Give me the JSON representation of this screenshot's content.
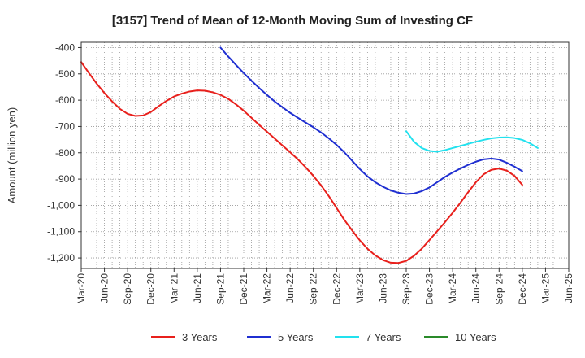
{
  "chart_data": {
    "type": "line",
    "title": "[3157]  Trend of Mean of 12-Month Moving Sum of Investing CF",
    "xlabel": "",
    "ylabel": "Amount (million yen)",
    "ylim": [
      -1240,
      -380
    ],
    "yticks": [
      -400,
      -500,
      -600,
      -700,
      -800,
      -900,
      -1000,
      -1100,
      -1200
    ],
    "ytick_labels": [
      "-400",
      "-500",
      "-600",
      "-700",
      "-800",
      "-900",
      "-1,000",
      "-1,100",
      "-1,200"
    ],
    "x_start": "Mar-20",
    "xticks": [
      "Mar-20",
      "Jun-20",
      "Sep-20",
      "Dec-20",
      "Mar-21",
      "Jun-21",
      "Sep-21",
      "Dec-21",
      "Mar-22",
      "Jun-22",
      "Sep-22",
      "Dec-22",
      "Mar-23",
      "Jun-23",
      "Sep-23",
      "Dec-23",
      "Mar-24",
      "Jun-24",
      "Sep-24",
      "Dec-24",
      "Mar-25",
      "Jun-25"
    ],
    "grid": true,
    "legend_position": "bottom",
    "series": [
      {
        "name": "3 Years",
        "color": "#e8201c",
        "start_index": 0,
        "values": [
          -455,
          -497,
          -537,
          -573,
          -605,
          -633,
          -652,
          -660,
          -658,
          -645,
          -623,
          -603,
          -586,
          -575,
          -567,
          -563,
          -564,
          -570,
          -580,
          -595,
          -616,
          -640,
          -667,
          -694,
          -720,
          -746,
          -772,
          -798,
          -825,
          -855,
          -888,
          -924,
          -965,
          -1010,
          -1055,
          -1095,
          -1133,
          -1165,
          -1190,
          -1208,
          -1218,
          -1219,
          -1211,
          -1192,
          -1165,
          -1132,
          -1098,
          -1064,
          -1028,
          -990,
          -950,
          -912,
          -882,
          -865,
          -860,
          -868,
          -888,
          -922
        ]
      },
      {
        "name": "5 Years",
        "color": "#1f2fd1",
        "start_index": 18,
        "values": [
          -400,
          -434,
          -466,
          -497,
          -526,
          -554,
          -580,
          -605,
          -627,
          -648,
          -667,
          -685,
          -703,
          -723,
          -745,
          -770,
          -798,
          -830,
          -862,
          -890,
          -912,
          -929,
          -943,
          -952,
          -957,
          -955,
          -946,
          -932,
          -912,
          -892,
          -875,
          -860,
          -846,
          -834,
          -825,
          -822,
          -826,
          -838,
          -853,
          -870
        ]
      },
      {
        "name": "7 Years",
        "color": "#22e1ee",
        "start_index": 42,
        "values": [
          -718,
          -758,
          -782,
          -793,
          -796,
          -790,
          -782,
          -774,
          -766,
          -758,
          -751,
          -745,
          -742,
          -741,
          -744,
          -751,
          -764,
          -782
        ]
      },
      {
        "name": "10 Years",
        "color": "#2a8a2a",
        "start_index": 0,
        "values": []
      }
    ]
  }
}
